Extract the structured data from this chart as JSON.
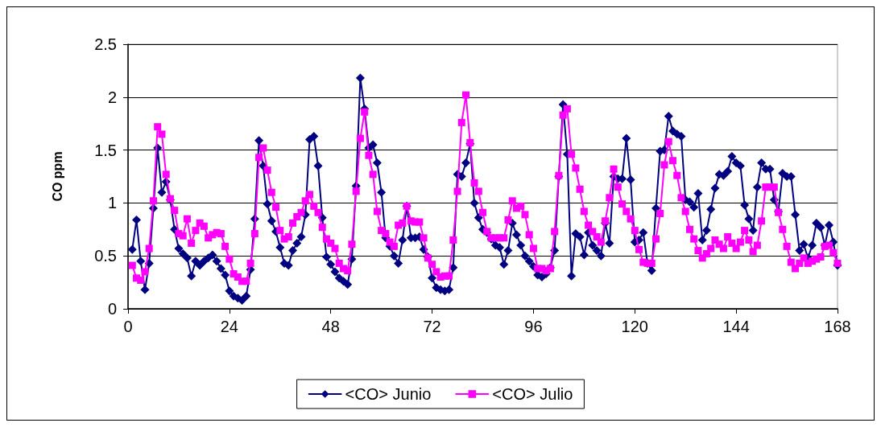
{
  "chart_data": {
    "type": "line",
    "ylabel": "CO ppm",
    "xlim": [
      0,
      168
    ],
    "xticks": [
      0,
      24,
      48,
      72,
      96,
      120,
      144,
      168
    ],
    "ylim": [
      0,
      2.5
    ],
    "yticks": [
      0,
      0.5,
      1,
      1.5,
      2,
      2.5
    ],
    "grid": "y",
    "legend": "bottom",
    "line_style": "solid",
    "x": [
      1,
      2,
      3,
      4,
      5,
      6,
      7,
      8,
      9,
      10,
      11,
      12,
      13,
      14,
      15,
      16,
      17,
      18,
      19,
      20,
      21,
      22,
      23,
      24,
      25,
      26,
      27,
      28,
      29,
      30,
      31,
      32,
      33,
      34,
      35,
      36,
      37,
      38,
      39,
      40,
      41,
      42,
      43,
      44,
      45,
      46,
      47,
      48,
      49,
      50,
      51,
      52,
      53,
      54,
      55,
      56,
      57,
      58,
      59,
      60,
      61,
      62,
      63,
      64,
      65,
      66,
      67,
      68,
      69,
      70,
      71,
      72,
      73,
      74,
      75,
      76,
      77,
      78,
      79,
      80,
      81,
      82,
      83,
      84,
      85,
      86,
      87,
      88,
      89,
      90,
      91,
      92,
      93,
      94,
      95,
      96,
      97,
      98,
      99,
      100,
      101,
      102,
      103,
      104,
      105,
      106,
      107,
      108,
      109,
      110,
      111,
      112,
      113,
      114,
      115,
      116,
      117,
      118,
      119,
      120,
      121,
      122,
      123,
      124,
      125,
      126,
      127,
      128,
      129,
      130,
      131,
      132,
      133,
      134,
      135,
      136,
      137,
      138,
      139,
      140,
      141,
      142,
      143,
      144,
      145,
      146,
      147,
      148,
      149,
      150,
      151,
      152,
      153,
      154,
      155,
      156,
      157,
      158,
      159,
      160,
      161,
      162,
      163,
      164,
      165,
      166,
      167,
      168
    ],
    "series": [
      {
        "name": "<CO> Junio",
        "color": "#000080",
        "marker": "diamond",
        "values": [
          0.56,
          0.84,
          0.45,
          0.18,
          0.43,
          0.95,
          1.52,
          1.1,
          1.2,
          1.03,
          0.75,
          0.57,
          0.52,
          0.48,
          0.31,
          0.45,
          0.41,
          0.45,
          0.48,
          0.51,
          0.45,
          0.38,
          0.32,
          0.17,
          0.12,
          0.1,
          0.08,
          0.12,
          0.37,
          0.85,
          1.59,
          1.35,
          0.99,
          0.83,
          0.73,
          0.58,
          0.43,
          0.41,
          0.55,
          0.62,
          0.68,
          0.89,
          1.6,
          1.63,
          1.35,
          0.86,
          0.49,
          0.42,
          0.35,
          0.29,
          0.26,
          0.23,
          0.47,
          1.16,
          2.18,
          1.89,
          1.52,
          1.55,
          1.38,
          1.1,
          0.67,
          0.59,
          0.5,
          0.43,
          0.65,
          0.97,
          0.67,
          0.67,
          0.68,
          0.56,
          0.49,
          0.29,
          0.2,
          0.18,
          0.17,
          0.18,
          0.39,
          1.27,
          1.25,
          1.38,
          1.56,
          1.0,
          0.86,
          0.75,
          0.72,
          0.66,
          0.6,
          0.58,
          0.42,
          0.55,
          0.81,
          0.7,
          0.6,
          0.5,
          0.45,
          0.4,
          0.32,
          0.3,
          0.33,
          0.39,
          0.55,
          1.25,
          1.93,
          1.46,
          0.31,
          0.71,
          0.68,
          0.51,
          0.72,
          0.6,
          0.55,
          0.5,
          0.81,
          0.62,
          1.25,
          1.23,
          1.23,
          1.61,
          1.22,
          0.63,
          0.65,
          0.72,
          0.43,
          0.36,
          0.95,
          1.49,
          1.5,
          1.82,
          1.68,
          1.65,
          1.63,
          1.03,
          1.01,
          0.96,
          1.09,
          0.65,
          0.74,
          0.94,
          1.14,
          1.27,
          1.26,
          1.3,
          1.44,
          1.38,
          1.35,
          0.98,
          0.85,
          0.74,
          1.15,
          1.38,
          1.32,
          1.32,
          1.03,
          0.92,
          1.28,
          1.25,
          1.25,
          0.89,
          0.55,
          0.61,
          0.48,
          0.6,
          0.81,
          0.77,
          0.6,
          0.79,
          0.63,
          0.41
        ]
      },
      {
        "name": "<CO> Julio",
        "color": "#ff00ff",
        "marker": "square",
        "values": [
          0.41,
          0.29,
          0.27,
          0.35,
          0.57,
          1.02,
          1.72,
          1.65,
          1.27,
          1.04,
          0.93,
          0.71,
          0.69,
          0.85,
          0.62,
          0.74,
          0.81,
          0.78,
          0.67,
          0.7,
          0.72,
          0.71,
          0.59,
          0.47,
          0.33,
          0.3,
          0.26,
          0.26,
          0.43,
          0.71,
          1.43,
          1.52,
          1.31,
          1.1,
          0.96,
          0.74,
          0.66,
          0.68,
          0.81,
          0.87,
          0.91,
          1.02,
          1.08,
          0.97,
          0.91,
          0.77,
          0.66,
          0.62,
          0.57,
          0.43,
          0.38,
          0.36,
          0.61,
          1.11,
          1.61,
          1.86,
          1.45,
          1.27,
          0.92,
          0.74,
          0.71,
          0.63,
          0.59,
          0.79,
          0.81,
          0.97,
          0.83,
          0.82,
          0.82,
          0.67,
          0.48,
          0.42,
          0.35,
          0.3,
          0.31,
          0.31,
          0.65,
          1.11,
          1.76,
          2.02,
          1.57,
          1.19,
          1.11,
          0.91,
          0.73,
          0.67,
          0.67,
          0.67,
          0.67,
          0.84,
          1.02,
          0.95,
          0.97,
          0.89,
          0.7,
          0.57,
          0.38,
          0.38,
          0.36,
          0.38,
          0.73,
          1.26,
          1.83,
          1.89,
          1.46,
          1.33,
          1.13,
          0.92,
          0.79,
          0.73,
          0.68,
          0.63,
          0.83,
          1.05,
          1.32,
          1.15,
          0.99,
          0.92,
          0.85,
          0.74,
          0.56,
          0.44,
          0.43,
          0.43,
          0.66,
          0.9,
          1.36,
          1.58,
          1.4,
          1.26,
          1.05,
          0.92,
          0.75,
          0.66,
          0.55,
          0.48,
          0.52,
          0.57,
          0.65,
          0.61,
          0.57,
          0.68,
          0.62,
          0.57,
          0.63,
          0.74,
          0.65,
          0.54,
          0.6,
          0.83,
          1.15,
          1.15,
          1.15,
          0.91,
          0.75,
          0.59,
          0.44,
          0.38,
          0.43,
          0.48,
          0.43,
          0.45,
          0.47,
          0.49,
          0.59,
          0.6,
          0.53,
          0.43
        ]
      }
    ]
  }
}
